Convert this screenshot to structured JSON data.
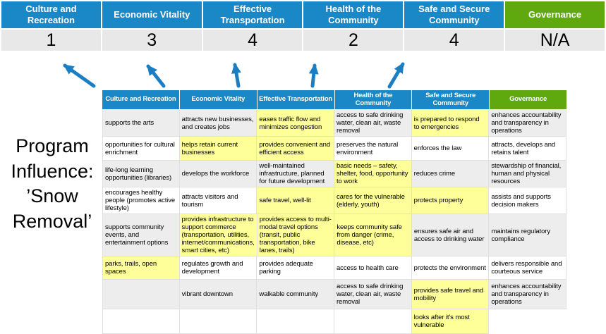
{
  "side_label": "Program Influence: ’Snow Removal’",
  "summary": {
    "columns": [
      {
        "label": "Culture and Recreation",
        "score": "1",
        "theme": "blue"
      },
      {
        "label": "Economic Vitality",
        "score": "3",
        "theme": "blue"
      },
      {
        "label": "Effective Transportation",
        "score": "4",
        "theme": "blue"
      },
      {
        "label": "Health of the Community",
        "score": "2",
        "theme": "blue"
      },
      {
        "label": "Safe and Secure Community",
        "score": "4",
        "theme": "blue"
      },
      {
        "label": "Governance",
        "score": "N/A",
        "theme": "green"
      }
    ]
  },
  "arrow_icons": [
    "up-left-arrow",
    "up-left-arrow",
    "up-arrow",
    "up-arrow",
    "up-right-arrow"
  ],
  "matrix": {
    "headers": [
      {
        "label": "Culture and Recreation",
        "theme": "blue"
      },
      {
        "label": "Economic Vitality",
        "theme": "blue"
      },
      {
        "label": "Effective Transportation",
        "theme": "blue"
      },
      {
        "label": "Health of the Community",
        "theme": "blue"
      },
      {
        "label": "Safe and Secure Community",
        "theme": "blue"
      },
      {
        "label": "Governance",
        "theme": "green"
      }
    ],
    "rows": [
      {
        "cells": [
          {
            "text": "supports the arts",
            "highlight": false
          },
          {
            "text": "attracts new businesses, and creates jobs",
            "highlight": false
          },
          {
            "text": "eases traffic flow and minimizes congestion",
            "highlight": true
          },
          {
            "text": "access to safe drinking water, clean air, waste removal",
            "highlight": false
          },
          {
            "text": "is prepared to respond to emergencies",
            "highlight": true
          },
          {
            "text": "enhances accountability and transparency in operations",
            "highlight": false
          }
        ]
      },
      {
        "cells": [
          {
            "text": "opportunities for cultural enrichment",
            "highlight": false
          },
          {
            "text": "helps retain current businesses",
            "highlight": true
          },
          {
            "text": "provides convenient and efficient access",
            "highlight": true
          },
          {
            "text": "preserves the natural environment",
            "highlight": false
          },
          {
            "text": "enforces the law",
            "highlight": false
          },
          {
            "text": "attracts, develops and retains talent",
            "highlight": false
          }
        ]
      },
      {
        "cells": [
          {
            "text": "life-long learning opportunities (libraries)",
            "highlight": false
          },
          {
            "text": "develops the workforce",
            "highlight": false
          },
          {
            "text": "well-maintained infrastructure, planned for future development",
            "highlight": false
          },
          {
            "text": "basic needs – safety, shelter, food, opportunity to work",
            "highlight": true
          },
          {
            "text": "reduces crime",
            "highlight": false
          },
          {
            "text": "stewardship of financial, human and physical resources",
            "highlight": false
          }
        ]
      },
      {
        "cells": [
          {
            "text": "encourages healthy people (promotes active lifestyle)",
            "highlight": false
          },
          {
            "text": "attracts visitors and tourism",
            "highlight": false
          },
          {
            "text": "safe travel, well-lit",
            "highlight": true
          },
          {
            "text": "cares for the vulnerable (elderly, youth)",
            "highlight": true
          },
          {
            "text": "protects property",
            "highlight": true
          },
          {
            "text": "assists and supports decision makers",
            "highlight": false
          }
        ]
      },
      {
        "cells": [
          {
            "text": "supports community events, and entertainment options",
            "highlight": false
          },
          {
            "text": "provides infrastructure to support commerce (transportation, utilities, internet/communications, smart cities, etc)",
            "highlight": true
          },
          {
            "text": "provides access to multi-modal travel options (transit, public transportation, bike lanes, trails)",
            "highlight": true
          },
          {
            "text": "keeps community safe from danger (crime, disease, etc)",
            "highlight": true
          },
          {
            "text": "ensures safe air and access to drinking water",
            "highlight": false
          },
          {
            "text": "maintains regulatory compliance",
            "highlight": false
          }
        ]
      },
      {
        "cells": [
          {
            "text": "parks, trails, open spaces",
            "highlight": true
          },
          {
            "text": "regulates growth and development",
            "highlight": false
          },
          {
            "text": "provides adequate parking",
            "highlight": false
          },
          {
            "text": "access to health care",
            "highlight": false
          },
          {
            "text": "protects the environment",
            "highlight": false
          },
          {
            "text": "delivers responsible and courteous service",
            "highlight": false
          }
        ]
      },
      {
        "cells": [
          {
            "text": "",
            "highlight": false
          },
          {
            "text": "vibrant downtown",
            "highlight": false
          },
          {
            "text": "walkable community",
            "highlight": false
          },
          {
            "text": "access to safe drinking water, clean air, waste removal",
            "highlight": false
          },
          {
            "text": "provides safe travel and mobility",
            "highlight": true
          },
          {
            "text": "enhances accountability and transparency in operations",
            "highlight": false
          }
        ]
      },
      {
        "cells": [
          {
            "text": "",
            "highlight": false
          },
          {
            "text": "",
            "highlight": false
          },
          {
            "text": "",
            "highlight": false
          },
          {
            "text": "",
            "highlight": false
          },
          {
            "text": "looks after it's most vulnerable",
            "highlight": true
          },
          {
            "text": "",
            "highlight": false,
            "blank": true
          }
        ]
      }
    ]
  },
  "colors": {
    "header_blue": "#1A87C6",
    "header_green": "#5FA90F",
    "highlight_yellow": "#FFFF99",
    "band_gray": "#EDEDED",
    "score_bg": "#E8E8E8",
    "arrow_blue": "#1B7EC3",
    "border_gray": "#E0E0E0"
  }
}
